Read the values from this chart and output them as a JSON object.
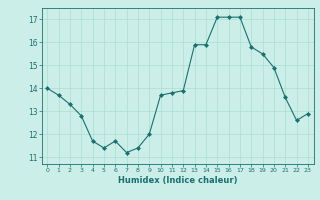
{
  "x": [
    0,
    1,
    2,
    3,
    4,
    5,
    6,
    7,
    8,
    9,
    10,
    11,
    12,
    13,
    14,
    15,
    16,
    17,
    18,
    19,
    20,
    21,
    22,
    23
  ],
  "y": [
    14.0,
    13.7,
    13.3,
    12.8,
    11.7,
    11.4,
    11.7,
    11.2,
    11.4,
    12.0,
    13.7,
    13.8,
    13.9,
    15.9,
    15.9,
    17.1,
    17.1,
    17.1,
    15.8,
    15.5,
    14.9,
    13.6,
    12.6,
    12.9
  ],
  "line_color": "#1a7070",
  "marker": "D",
  "marker_size": 2,
  "bg_color": "#cceee8",
  "grid_color": "#aaddcc",
  "xlabel": "Humidex (Indice chaleur)",
  "ylim": [
    10.7,
    17.5
  ],
  "xlim": [
    -0.5,
    23.5
  ],
  "yticks": [
    11,
    12,
    13,
    14,
    15,
    16,
    17
  ],
  "xticks": [
    0,
    1,
    2,
    3,
    4,
    5,
    6,
    7,
    8,
    9,
    10,
    11,
    12,
    13,
    14,
    15,
    16,
    17,
    18,
    19,
    20,
    21,
    22,
    23
  ]
}
